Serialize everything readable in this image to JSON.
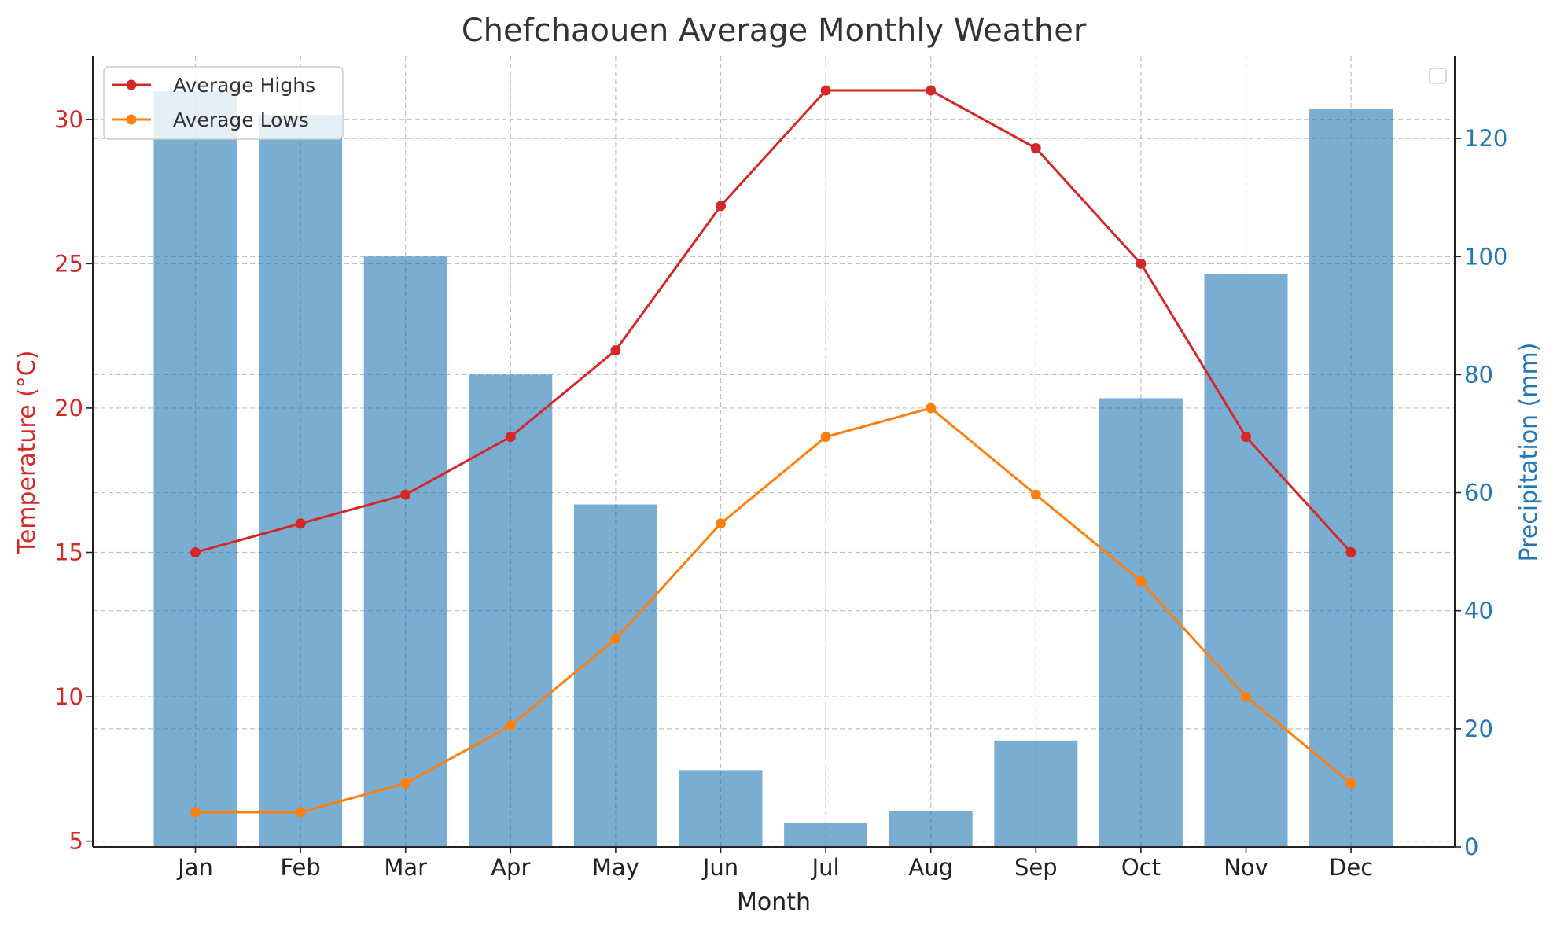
{
  "chart_data": {
    "type": "bar+line",
    "title": "Chefchaouen Average Monthly Weather",
    "xlabel": "Month",
    "ylabel_left": "Temperature (°C)",
    "ylabel_right": "Precipitation (mm)",
    "categories": [
      "Jan",
      "Feb",
      "Mar",
      "Apr",
      "May",
      "Jun",
      "Jul",
      "Aug",
      "Sep",
      "Oct",
      "Nov",
      "Dec"
    ],
    "left_axis": {
      "ylim": [
        4.8,
        32.2
      ],
      "ticks": [
        5,
        10,
        15,
        20,
        25,
        30
      ],
      "color": "#d62728"
    },
    "right_axis": {
      "ylim": [
        0,
        134
      ],
      "ticks": [
        0,
        20,
        40,
        60,
        80,
        100,
        120
      ],
      "color": "#1f77b4"
    },
    "line_series": [
      {
        "name": "Average Highs",
        "color": "#d62728",
        "values": [
          15,
          16,
          17,
          19,
          22,
          27,
          31,
          31,
          29,
          25,
          19,
          15
        ]
      },
      {
        "name": "Average Lows",
        "color": "#ff7f0e",
        "values": [
          6,
          6,
          7,
          9,
          12,
          16,
          19,
          20,
          17,
          14,
          10,
          7
        ]
      }
    ],
    "bar_series": {
      "color": "#1f77b4",
      "opacity": 0.6,
      "values": [
        128,
        124,
        100,
        80,
        58,
        13,
        4,
        6,
        18,
        76,
        97,
        125
      ]
    },
    "grid": true,
    "legend_position": "upper-left"
  }
}
